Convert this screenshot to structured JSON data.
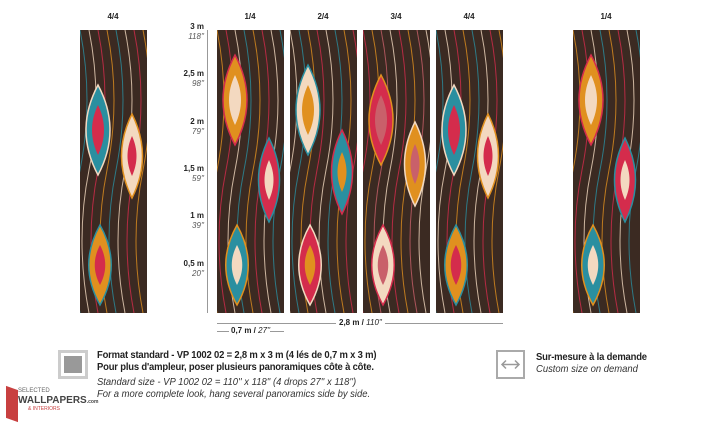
{
  "panels": [
    {
      "label": "4/4",
      "group": "left"
    },
    {
      "label": "1/4",
      "group": "main"
    },
    {
      "label": "2/4",
      "group": "main"
    },
    {
      "label": "3/4",
      "group": "main"
    },
    {
      "label": "4/4",
      "group": "main"
    },
    {
      "label": "1/4",
      "group": "right"
    }
  ],
  "ruler": {
    "ticks": [
      {
        "m": "3 m",
        "in": "118''"
      },
      {
        "m": "2,5 m",
        "in": "98''"
      },
      {
        "m": "2 m",
        "in": "79''"
      },
      {
        "m": "1,5 m",
        "in": "59''"
      },
      {
        "m": "1 m",
        "in": "39''"
      },
      {
        "m": "0,5 m",
        "in": "20''"
      }
    ],
    "total_width_m": "2,8 m /",
    "total_width_in": "110''",
    "drop_width_m": "0,7 m /",
    "drop_width_in": "27''"
  },
  "colors": {
    "background": "#3b2a22",
    "orange": "#e0901f",
    "red": "#d42c4c",
    "teal": "#2a8fa0",
    "cream": "#f3d9c0",
    "pink": "#c9606a"
  },
  "standard": {
    "icon": "square-format-icon",
    "line1": "Format standard - VP 1002 02 = 2,8 m x 3 m (4 lés de 0,7 m x 3 m)",
    "line2": "Pour plus d'ampleur, poser plusieurs panoramiques côte à côte.",
    "line3": "Standard size - VP 1002 02 = 110'' x 118'' (4 drops 27'' x 118'')",
    "line4": "For a more complete look, hang several panoramics side by side."
  },
  "custom": {
    "icon": "horizontal-arrows-icon",
    "line1": "Sur-mesure à la demande",
    "line2": "Custom size on demand"
  },
  "logo": {
    "line1": "SELECTED",
    "line2": "WALLPAPERS.com",
    "line3": "& INTERIORS"
  }
}
